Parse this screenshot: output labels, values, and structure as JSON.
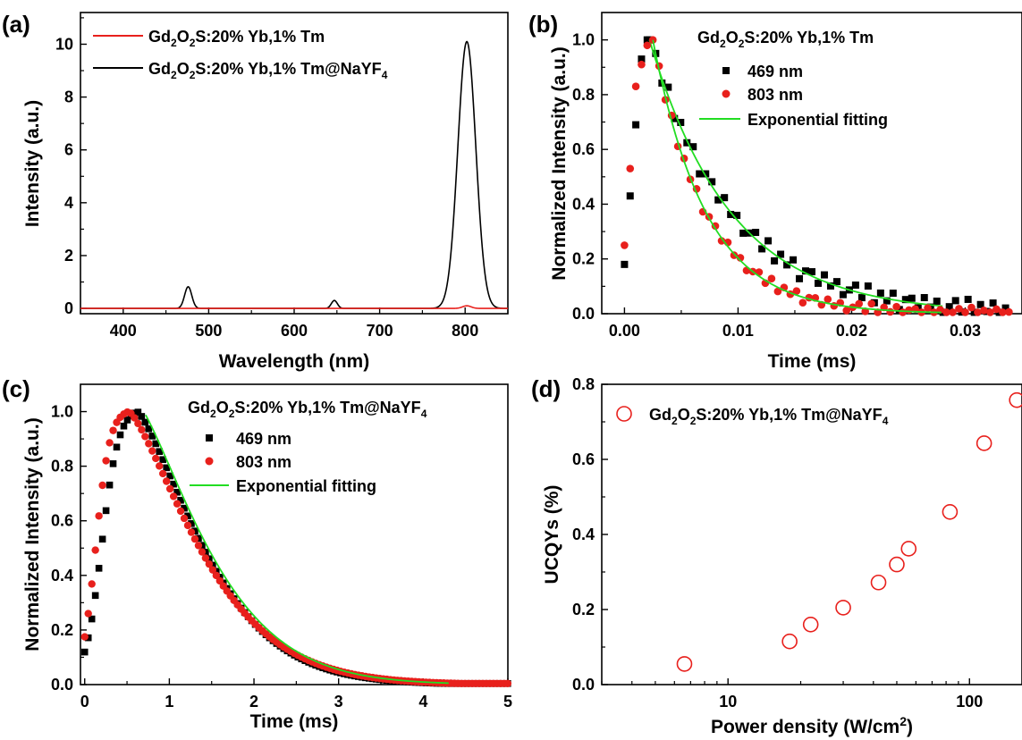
{
  "colors": {
    "red": "#e8201c",
    "black": "#000000",
    "green": "#22dd22"
  },
  "chart_data": [
    {
      "panel": "(a)",
      "type": "line",
      "xlabel": "Wavelength (nm)",
      "ylabel": "Intensity (a.u.)",
      "xlim": [
        350,
        850
      ],
      "ylim": [
        -0.2,
        11.2
      ],
      "xticks": [
        400,
        500,
        600,
        700,
        800
      ],
      "yticks": [
        0,
        2,
        4,
        6,
        8,
        10
      ],
      "series": [
        {
          "name": "Gd2O2S:20% Yb,1% Tm",
          "color": "#e8201c",
          "peaks": [
            {
              "center": 802,
              "height": 0.1,
              "width": 5
            }
          ]
        },
        {
          "name": "Gd2O2S:20% Yb,1% Tm@NaYF4",
          "color": "#000000",
          "peaks": [
            {
              "center": 476,
              "height": 0.82,
              "width": 4.2
            },
            {
              "center": 647,
              "height": 0.3,
              "width": 3.5
            },
            {
              "center": 802,
              "height": 10.1,
              "width": 10.5
            }
          ]
        }
      ]
    },
    {
      "panel": "(b)",
      "type": "scatter",
      "title": "Gd2O2S:20% Yb,1% Tm",
      "xlabel": "Time (ms)",
      "ylabel": "Normalized Intensity (a.u.)",
      "xlim": [
        -0.002,
        0.035
      ],
      "ylim": [
        0,
        1.1
      ],
      "xticks": [
        0.0,
        0.01,
        0.02,
        0.03
      ],
      "xtick_labels": [
        "0.00",
        "0.01",
        "0.02",
        "0.03"
      ],
      "yticks": [
        0.0,
        0.2,
        0.4,
        0.6,
        0.8,
        1.0
      ],
      "series": [
        {
          "name": "469 nm",
          "marker": "square",
          "color": "#000000",
          "rise": [
            [
              0.0,
              0.18
            ],
            [
              0.0005,
              0.43
            ],
            [
              0.001,
              0.69
            ],
            [
              0.0015,
              0.93
            ],
            [
              0.002,
              1.0
            ]
          ],
          "peak_time": 0.0022,
          "tau": 0.0072,
          "end": 0.034
        },
        {
          "name": "803 nm",
          "marker": "circle",
          "color": "#e8201c",
          "rise": [
            [
              0.0,
              0.25
            ],
            [
              0.0005,
              0.53
            ],
            [
              0.001,
              0.83
            ],
            [
              0.0015,
              0.91
            ],
            [
              0.002,
              0.98
            ]
          ],
          "peak_time": 0.0025,
          "tau": 0.0047,
          "end": 0.034
        },
        {
          "name": "Exponential fitting",
          "marker": "line",
          "color": "#22dd22"
        }
      ]
    },
    {
      "panel": "(c)",
      "type": "scatter",
      "title": "Gd2O2S:20% Yb,1% Tm@NaYF4",
      "xlabel": "Time (ms)",
      "ylabel": "Normalized Intensity (a.u.)",
      "xlim": [
        -0.05,
        5
      ],
      "ylim": [
        0,
        1.1
      ],
      "xticks": [
        0,
        1,
        2,
        3,
        4,
        5
      ],
      "yticks": [
        0.0,
        0.2,
        0.4,
        0.6,
        0.8,
        1.0
      ],
      "series": [
        {
          "name": "469 nm",
          "marker": "square",
          "color": "#000000",
          "peak_time": 0.62,
          "rise_half": 0.2,
          "tau": 0.95,
          "end": 5
        },
        {
          "name": "803 nm",
          "marker": "circle",
          "color": "#e8201c",
          "peak_time": 0.52,
          "rise_half": 0.13,
          "tau": 1.02,
          "end": 5
        },
        {
          "name": "Exponential fitting",
          "marker": "line",
          "color": "#22dd22"
        }
      ]
    },
    {
      "panel": "(d)",
      "type": "scatter",
      "xlabel": "Power density (W/cm2)",
      "ylabel": "UCQYs (%)",
      "xscale": "log",
      "xlim": [
        3,
        165
      ],
      "ylim": [
        0,
        0.8
      ],
      "xticks": [
        10,
        100
      ],
      "yticks": [
        0.0,
        0.2,
        0.4,
        0.6,
        0.8
      ],
      "series": [
        {
          "name": "Gd2O2S:20% Yb,1% Tm@NaYF4",
          "marker": "open-circle",
          "color": "#e8201c",
          "x": [
            6.6,
            18,
            22,
            30,
            42,
            50,
            56,
            83,
            115,
            157
          ],
          "y": [
            0.055,
            0.115,
            0.16,
            0.205,
            0.272,
            0.32,
            0.362,
            0.46,
            0.643,
            0.758
          ]
        }
      ]
    }
  ]
}
